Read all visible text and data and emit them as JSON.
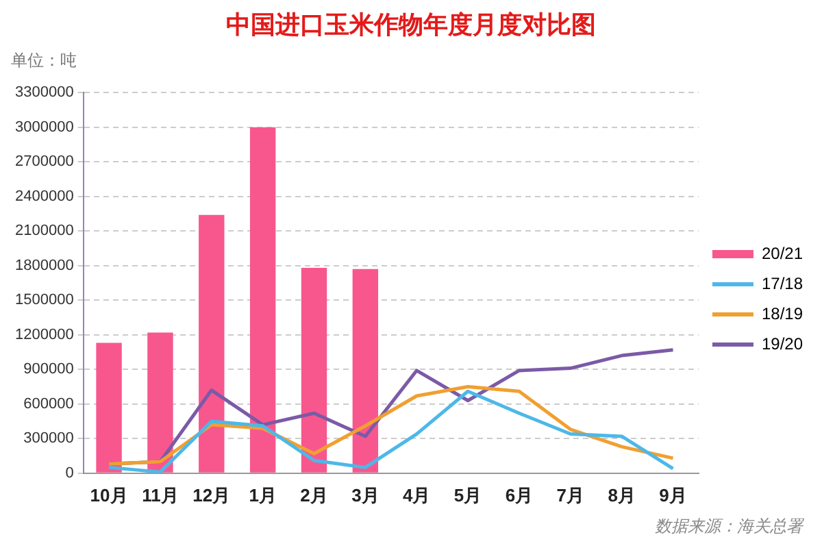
{
  "chart_data": {
    "type": "bar",
    "title": "中国进口玉米作物年度月度对比图",
    "ylabel": "单位：吨",
    "categories": [
      "10月",
      "11月",
      "12月",
      "1月",
      "2月",
      "3月",
      "4月",
      "5月",
      "6月",
      "7月",
      "8月",
      "9月"
    ],
    "series": [
      {
        "name": "20/21",
        "color": "#f8578e",
        "values": [
          1130000,
          1220000,
          2240000,
          3000000,
          1780000,
          1770000,
          null,
          null,
          null,
          null,
          null,
          null
        ]
      },
      {
        "name": "17/18",
        "type": "line",
        "color": "#4db8e8",
        "values": [
          50000,
          10000,
          450000,
          410000,
          110000,
          50000,
          340000,
          710000,
          520000,
          340000,
          320000,
          40000
        ]
      },
      {
        "name": "18/19",
        "type": "line",
        "color": "#f0a030",
        "values": [
          80000,
          100000,
          420000,
          390000,
          170000,
          410000,
          670000,
          750000,
          710000,
          380000,
          230000,
          130000
        ]
      },
      {
        "name": "19/20",
        "type": "line",
        "color": "#7b5aa6",
        "values": [
          80000,
          100000,
          720000,
          420000,
          520000,
          320000,
          890000,
          630000,
          890000,
          910000,
          1020000,
          1070000
        ]
      }
    ],
    "ylim": [
      0,
      3300000
    ],
    "yticks": [
      0,
      300000,
      600000,
      900000,
      1200000,
      1500000,
      1800000,
      2100000,
      2400000,
      2700000,
      3000000,
      3300000
    ],
    "grid": "y",
    "legend": "right",
    "marker": "none",
    "line_style": "solid",
    "annotations": [
      "数据来源：海关总署"
    ]
  }
}
